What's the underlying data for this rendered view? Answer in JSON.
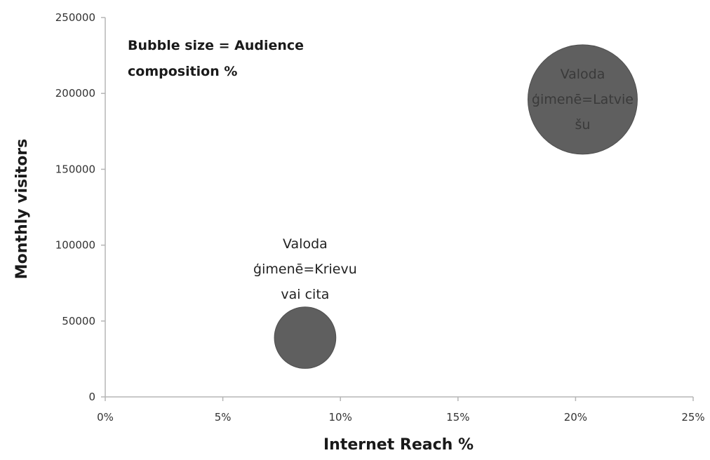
{
  "chart_data": {
    "type": "scatter",
    "xlabel": "Internet Reach %",
    "ylabel": "Monthly visitors",
    "xlim": [
      0,
      25
    ],
    "ylim": [
      0,
      250000
    ],
    "x_ticks": [
      0,
      5,
      10,
      15,
      20,
      25
    ],
    "x_tick_labels": [
      "0%",
      "5%",
      "10%",
      "15%",
      "20%",
      "25%"
    ],
    "y_ticks": [
      0,
      50000,
      100000,
      150000,
      200000,
      250000
    ],
    "y_tick_labels": [
      "0",
      "50000",
      "100000",
      "150000",
      "200000",
      "250000"
    ],
    "grid": false,
    "legend": "none",
    "annotation": {
      "lines": [
        "Bubble size  = Audience",
        "composition %"
      ]
    },
    "points": [
      {
        "x": 8.5,
        "y": 39000,
        "size": 24,
        "label_lines": [
          "Valoda",
          "ģimenē=Krievu",
          "vai cita"
        ],
        "label_position": "above"
      },
      {
        "x": 20.3,
        "y": 196000,
        "size": 76,
        "label_lines": [
          "Valoda",
          "ģimenē=Latvie",
          "šu"
        ],
        "label_position": "inside"
      }
    ],
    "colors": {
      "bubble": "#5f5f5f",
      "bubble_stroke": "#4f4f4f",
      "axis": "#b5b5b5"
    }
  }
}
